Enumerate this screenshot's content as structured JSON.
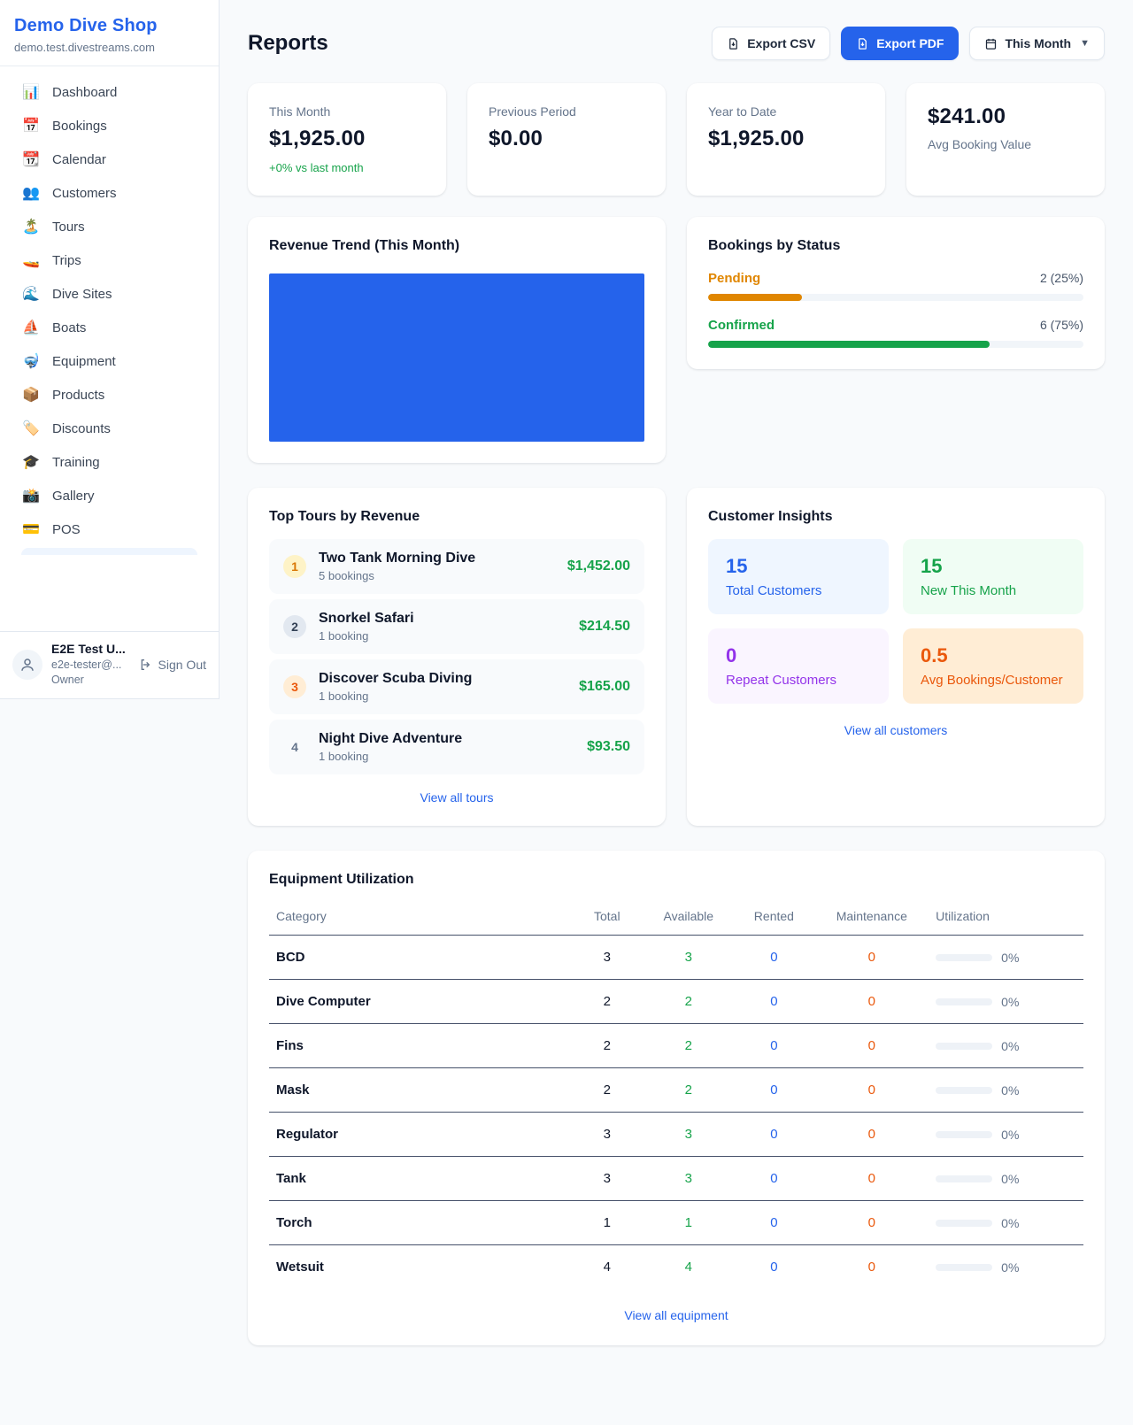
{
  "colors": {
    "accent": "#2563eb",
    "positive_green": "#16a34a",
    "pending_orange": "#e08600",
    "maintenance_orange": "#ea580c",
    "revenue_chart_fill": "#2563eb",
    "active_nav_bg": "#eef5fe"
  },
  "sidebar": {
    "shop_name": "Demo Dive Shop",
    "shop_domain": "demo.test.divestreams.com",
    "nav": [
      {
        "icon": "📊",
        "label": "Dashboard"
      },
      {
        "icon": "📅",
        "label": "Bookings"
      },
      {
        "icon": "📆",
        "label": "Calendar"
      },
      {
        "icon": "👥",
        "label": "Customers"
      },
      {
        "icon": "🏝️",
        "label": "Tours"
      },
      {
        "icon": "🚤",
        "label": "Trips"
      },
      {
        "icon": "🌊",
        "label": "Dive Sites"
      },
      {
        "icon": "⛵",
        "label": "Boats"
      },
      {
        "icon": "🤿",
        "label": "Equipment"
      },
      {
        "icon": "📦",
        "label": "Products"
      },
      {
        "icon": "🏷️",
        "label": "Discounts"
      },
      {
        "icon": "🎓",
        "label": "Training"
      },
      {
        "icon": "📸",
        "label": "Gallery"
      },
      {
        "icon": "💳",
        "label": "POS"
      }
    ],
    "user": {
      "name": "E2E Test U...",
      "email": "e2e-tester@...",
      "role": "Owner",
      "sign_out_label": "Sign Out"
    }
  },
  "header": {
    "title": "Reports",
    "export_csv_label": "Export CSV",
    "export_pdf_label": "Export PDF",
    "period_label": "This Month"
  },
  "stats": [
    {
      "label": "This Month",
      "value": "$1,925.00",
      "delta": "+0% vs last month",
      "delta_color": "#16a34a"
    },
    {
      "label": "Previous Period",
      "value": "$0.00"
    },
    {
      "label": "Year to Date",
      "value": "$1,925.00"
    },
    {
      "label": "Avg Booking Value",
      "value": "$241.00"
    }
  ],
  "revenue_trend": {
    "title": "Revenue Trend (This Month)",
    "display": "solid-fill-block",
    "fill_color": "#2563eb"
  },
  "bookings_by_status": {
    "title": "Bookings by Status",
    "rows": [
      {
        "label": "Pending",
        "count_text": "2 (25%)",
        "percent": 25,
        "color": "#e08600"
      },
      {
        "label": "Confirmed",
        "count_text": "6 (75%)",
        "percent": 75,
        "color": "#16a34a"
      }
    ]
  },
  "top_tours": {
    "title": "Top Tours by Revenue",
    "items": [
      {
        "rank": "1",
        "name": "Two Tank Morning Dive",
        "bookings": "5 bookings",
        "revenue": "$1,452.00",
        "badge_bg": "#fef3c7",
        "badge_fg": "#d97706",
        "revenue_color": "#16a34a"
      },
      {
        "rank": "2",
        "name": "Snorkel Safari",
        "bookings": "1 booking",
        "revenue": "$214.50",
        "badge_bg": "#e2e8f0",
        "badge_fg": "#334155",
        "revenue_color": "#16a34a"
      },
      {
        "rank": "3",
        "name": "Discover Scuba Diving",
        "bookings": "1 booking",
        "revenue": "$165.00",
        "badge_bg": "#ffedd5",
        "badge_fg": "#ea580c",
        "revenue_color": "#16a34a"
      },
      {
        "rank": "4",
        "name": "Night Dive Adventure",
        "bookings": "1 booking",
        "revenue": "$93.50",
        "badge_bg": "transparent",
        "badge_fg": "#64748b",
        "revenue_color": "#16a34a"
      }
    ],
    "view_all_label": "View all tours"
  },
  "customer_insights": {
    "title": "Customer Insights",
    "boxes": [
      {
        "value": "15",
        "label": "Total Customers",
        "bg": "#eff6ff",
        "fg": "#2563eb"
      },
      {
        "value": "15",
        "label": "New This Month",
        "bg": "#f0fdf4",
        "fg": "#16a34a"
      },
      {
        "value": "0",
        "label": "Repeat Customers",
        "bg": "#faf5ff",
        "fg": "#9333ea"
      },
      {
        "value": "0.5",
        "label": "Avg Bookings/Customer",
        "bg": "#ffedd5",
        "fg": "#ea580c"
      }
    ],
    "view_all_label": "View all customers"
  },
  "equipment": {
    "title": "Equipment Utilization",
    "columns": [
      "Category",
      "Total",
      "Available",
      "Rented",
      "Maintenance",
      "Utilization"
    ],
    "rows": [
      {
        "category": "BCD",
        "total": "3",
        "available": "3",
        "rented": "0",
        "maintenance": "0",
        "utilization_label": "0%",
        "utilization_pct": 0
      },
      {
        "category": "Dive Computer",
        "total": "2",
        "available": "2",
        "rented": "0",
        "maintenance": "0",
        "utilization_label": "0%",
        "utilization_pct": 0
      },
      {
        "category": "Fins",
        "total": "2",
        "available": "2",
        "rented": "0",
        "maintenance": "0",
        "utilization_label": "0%",
        "utilization_pct": 0
      },
      {
        "category": "Mask",
        "total": "2",
        "available": "2",
        "rented": "0",
        "maintenance": "0",
        "utilization_label": "0%",
        "utilization_pct": 0
      },
      {
        "category": "Regulator",
        "total": "3",
        "available": "3",
        "rented": "0",
        "maintenance": "0",
        "utilization_label": "0%",
        "utilization_pct": 0
      },
      {
        "category": "Tank",
        "total": "3",
        "available": "3",
        "rented": "0",
        "maintenance": "0",
        "utilization_label": "0%",
        "utilization_pct": 0
      },
      {
        "category": "Torch",
        "total": "1",
        "available": "1",
        "rented": "0",
        "maintenance": "0",
        "utilization_label": "0%",
        "utilization_pct": 0
      },
      {
        "category": "Wetsuit",
        "total": "4",
        "available": "4",
        "rented": "0",
        "maintenance": "0",
        "utilization_label": "0%",
        "utilization_pct": 0
      }
    ],
    "view_all_label": "View all equipment"
  }
}
